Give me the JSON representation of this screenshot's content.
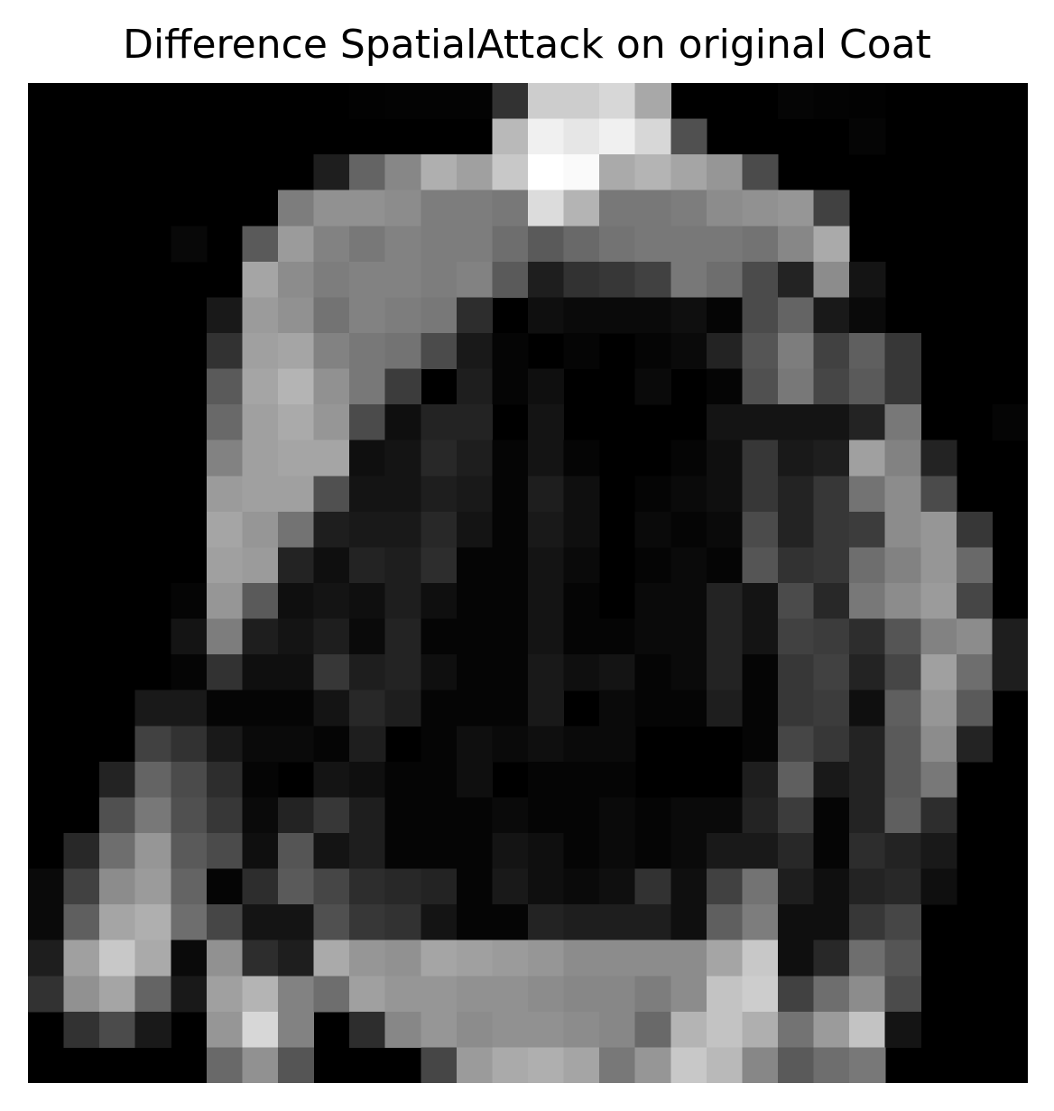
{
  "title": "Difference SpatialAttack on original Coat",
  "image": {
    "colormap": "gray",
    "rows": 28,
    "cols": 28,
    "grid": [
      [
        0,
        0,
        0,
        0,
        0,
        0,
        0,
        0,
        0,
        2,
        3,
        3,
        3,
        50,
        205,
        205,
        215,
        168,
        0,
        0,
        0,
        5,
        3,
        2,
        0,
        0,
        0,
        0
      ],
      [
        0,
        0,
        0,
        0,
        0,
        0,
        0,
        0,
        0,
        0,
        0,
        0,
        0,
        185,
        240,
        230,
        240,
        215,
        80,
        0,
        0,
        0,
        0,
        5,
        0,
        0,
        0,
        0
      ],
      [
        0,
        0,
        0,
        0,
        0,
        0,
        0,
        0,
        30,
        100,
        135,
        175,
        160,
        200,
        255,
        250,
        170,
        180,
        165,
        150,
        75,
        0,
        0,
        0,
        0,
        0,
        0,
        0
      ],
      [
        0,
        0,
        0,
        0,
        0,
        0,
        0,
        125,
        145,
        145,
        140,
        125,
        125,
        120,
        220,
        180,
        120,
        120,
        125,
        140,
        145,
        150,
        65,
        0,
        0,
        0,
        0,
        0
      ],
      [
        0,
        0,
        0,
        0,
        8,
        0,
        90,
        155,
        130,
        120,
        130,
        125,
        125,
        110,
        90,
        105,
        115,
        120,
        120,
        120,
        115,
        135,
        170,
        0,
        0,
        0,
        0,
        0
      ],
      [
        0,
        0,
        0,
        0,
        0,
        0,
        165,
        140,
        125,
        130,
        130,
        125,
        130,
        90,
        30,
        50,
        55,
        65,
        120,
        110,
        75,
        35,
        140,
        20,
        0,
        0,
        0,
        0
      ],
      [
        0,
        0,
        0,
        0,
        0,
        25,
        155,
        145,
        115,
        130,
        125,
        120,
        45,
        0,
        15,
        10,
        10,
        10,
        15,
        5,
        75,
        100,
        25,
        10,
        0,
        0,
        0,
        0
      ],
      [
        0,
        0,
        0,
        0,
        0,
        50,
        160,
        165,
        130,
        120,
        115,
        75,
        25,
        5,
        0,
        5,
        0,
        5,
        10,
        35,
        85,
        125,
        65,
        95,
        55,
        0,
        0,
        0
      ],
      [
        0,
        0,
        0,
        0,
        0,
        90,
        165,
        180,
        145,
        120,
        60,
        0,
        30,
        5,
        15,
        0,
        0,
        10,
        0,
        5,
        80,
        120,
        70,
        90,
        55,
        0,
        0,
        0
      ],
      [
        0,
        0,
        0,
        0,
        0,
        105,
        160,
        170,
        150,
        75,
        15,
        35,
        35,
        0,
        20,
        0,
        0,
        0,
        0,
        20,
        20,
        20,
        20,
        35,
        120,
        0,
        0,
        5
      ],
      [
        0,
        0,
        0,
        0,
        0,
        130,
        160,
        165,
        165,
        15,
        20,
        40,
        30,
        5,
        20,
        5,
        0,
        0,
        5,
        15,
        55,
        25,
        30,
        160,
        130,
        35,
        0,
        0
      ],
      [
        0,
        0,
        0,
        0,
        0,
        155,
        160,
        160,
        80,
        20,
        20,
        30,
        25,
        5,
        30,
        15,
        0,
        5,
        10,
        15,
        55,
        35,
        55,
        115,
        140,
        75,
        0,
        0
      ],
      [
        0,
        0,
        0,
        0,
        0,
        165,
        150,
        115,
        30,
        25,
        25,
        40,
        20,
        5,
        25,
        15,
        0,
        10,
        5,
        10,
        75,
        35,
        55,
        60,
        140,
        150,
        55,
        0
      ],
      [
        0,
        0,
        0,
        0,
        0,
        160,
        155,
        35,
        15,
        35,
        30,
        45,
        5,
        5,
        20,
        10,
        0,
        5,
        10,
        5,
        85,
        50,
        55,
        110,
        130,
        150,
        105,
        0
      ],
      [
        0,
        0,
        0,
        0,
        5,
        150,
        90,
        15,
        20,
        15,
        30,
        15,
        5,
        5,
        20,
        5,
        0,
        10,
        10,
        35,
        20,
        75,
        40,
        120,
        140,
        155,
        70,
        0
      ],
      [
        0,
        0,
        0,
        0,
        20,
        125,
        30,
        20,
        30,
        10,
        35,
        5,
        5,
        5,
        20,
        5,
        5,
        10,
        10,
        35,
        20,
        65,
        60,
        45,
        85,
        130,
        140,
        30
      ],
      [
        0,
        0,
        0,
        0,
        5,
        50,
        15,
        15,
        55,
        30,
        35,
        15,
        5,
        5,
        25,
        15,
        20,
        5,
        10,
        35,
        5,
        55,
        65,
        35,
        70,
        160,
        110,
        30
      ],
      [
        0,
        0,
        0,
        25,
        25,
        5,
        5,
        5,
        20,
        40,
        30,
        5,
        5,
        5,
        25,
        0,
        10,
        5,
        5,
        30,
        5,
        55,
        60,
        15,
        95,
        150,
        90,
        0
      ],
      [
        0,
        0,
        0,
        65,
        50,
        25,
        10,
        10,
        5,
        30,
        0,
        5,
        15,
        10,
        15,
        10,
        10,
        0,
        0,
        0,
        5,
        70,
        55,
        35,
        90,
        140,
        35,
        0
      ],
      [
        0,
        0,
        35,
        100,
        75,
        45,
        5,
        0,
        20,
        15,
        5,
        5,
        15,
        0,
        5,
        5,
        5,
        0,
        0,
        0,
        30,
        95,
        25,
        35,
        90,
        120,
        0,
        0
      ],
      [
        0,
        0,
        80,
        120,
        80,
        55,
        10,
        35,
        55,
        30,
        5,
        5,
        5,
        10,
        5,
        5,
        10,
        5,
        10,
        10,
        35,
        60,
        5,
        35,
        95,
        45,
        0,
        0
      ],
      [
        0,
        40,
        110,
        150,
        90,
        75,
        15,
        85,
        20,
        30,
        5,
        5,
        5,
        20,
        15,
        5,
        10,
        5,
        10,
        25,
        25,
        40,
        5,
        45,
        35,
        25,
        0,
        0
      ],
      [
        10,
        65,
        140,
        155,
        100,
        5,
        45,
        90,
        70,
        45,
        40,
        35,
        5,
        25,
        15,
        10,
        15,
        50,
        15,
        65,
        115,
        30,
        15,
        35,
        40,
        15,
        0,
        0
      ],
      [
        10,
        95,
        165,
        175,
        110,
        70,
        20,
        20,
        80,
        55,
        50,
        20,
        5,
        5,
        35,
        30,
        30,
        30,
        15,
        95,
        125,
        15,
        15,
        55,
        70,
        0,
        0,
        0
      ],
      [
        30,
        160,
        200,
        170,
        10,
        145,
        45,
        30,
        170,
        150,
        145,
        165,
        160,
        155,
        150,
        140,
        140,
        140,
        140,
        165,
        200,
        15,
        40,
        110,
        85,
        0,
        0,
        0
      ],
      [
        50,
        145,
        165,
        100,
        25,
        160,
        180,
        130,
        110,
        160,
        150,
        150,
        145,
        145,
        140,
        135,
        135,
        125,
        140,
        195,
        205,
        65,
        110,
        140,
        75,
        0,
        0,
        0
      ],
      [
        0,
        50,
        75,
        25,
        0,
        150,
        215,
        130,
        0,
        45,
        135,
        150,
        140,
        145,
        145,
        140,
        135,
        105,
        180,
        195,
        175,
        115,
        155,
        195,
        20,
        0,
        0,
        0
      ],
      [
        0,
        0,
        0,
        0,
        0,
        105,
        145,
        85,
        0,
        0,
        0,
        70,
        155,
        170,
        175,
        165,
        120,
        150,
        200,
        185,
        135,
        90,
        110,
        120,
        0,
        0,
        0,
        0
      ]
    ]
  }
}
